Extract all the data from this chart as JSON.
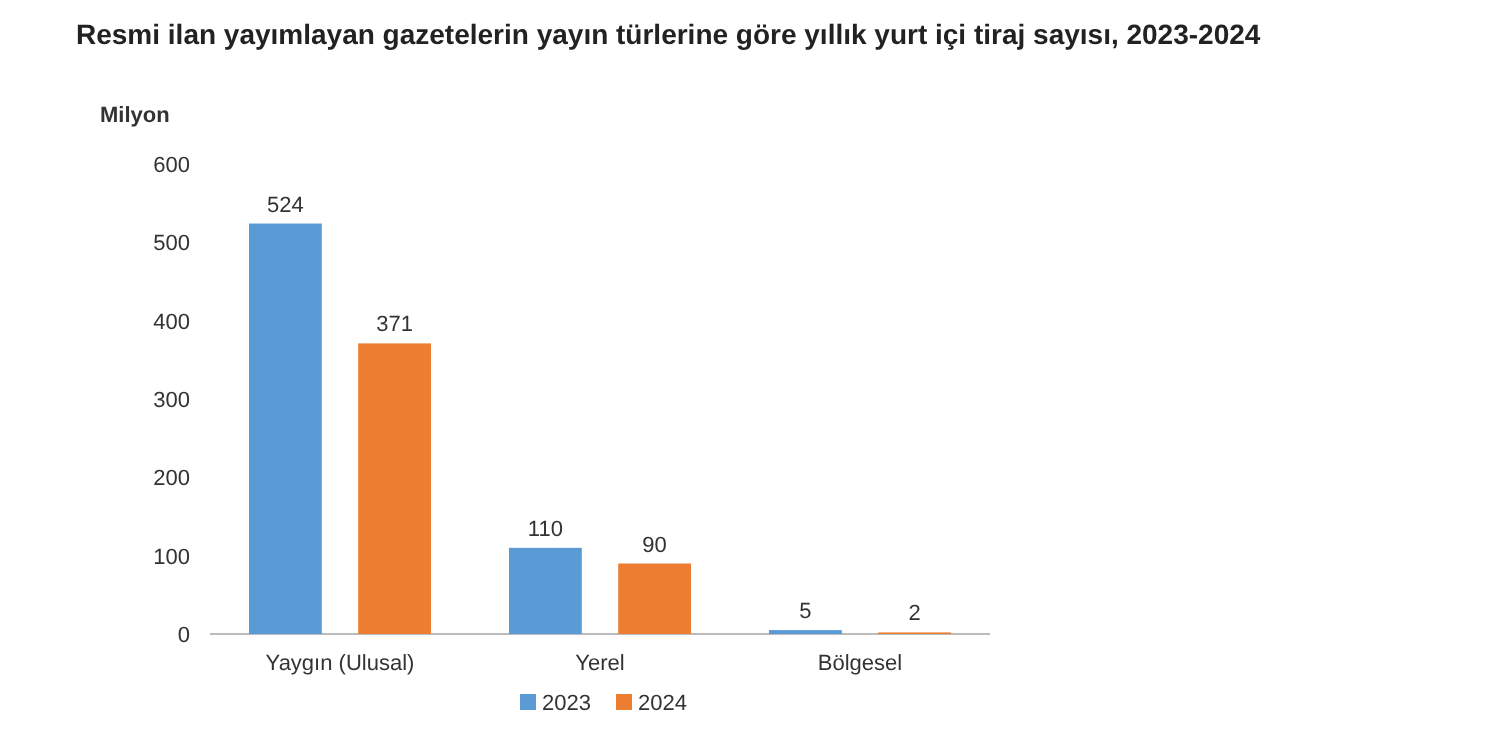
{
  "chart_data": {
    "type": "bar",
    "title": "Resmi ilan yayımlayan gazetelerin yayın türlerine göre yıllık yurt içi tiraj sayısı, 2023-2024",
    "ylabel": "Milyon",
    "categories": [
      "Yaygın (Ulusal)",
      "Yerel",
      "Bölgesel"
    ],
    "series": [
      {
        "name": "2023",
        "color": "#5b9bd5",
        "values": [
          524,
          110,
          5
        ]
      },
      {
        "name": "2024",
        "color": "#ed7d31",
        "values": [
          371,
          90,
          2
        ]
      }
    ],
    "ylim": [
      0,
      600
    ],
    "yticks": [
      0,
      100,
      200,
      300,
      400,
      500,
      600
    ],
    "data_labels": true,
    "legend": "bottom",
    "grid": false
  }
}
